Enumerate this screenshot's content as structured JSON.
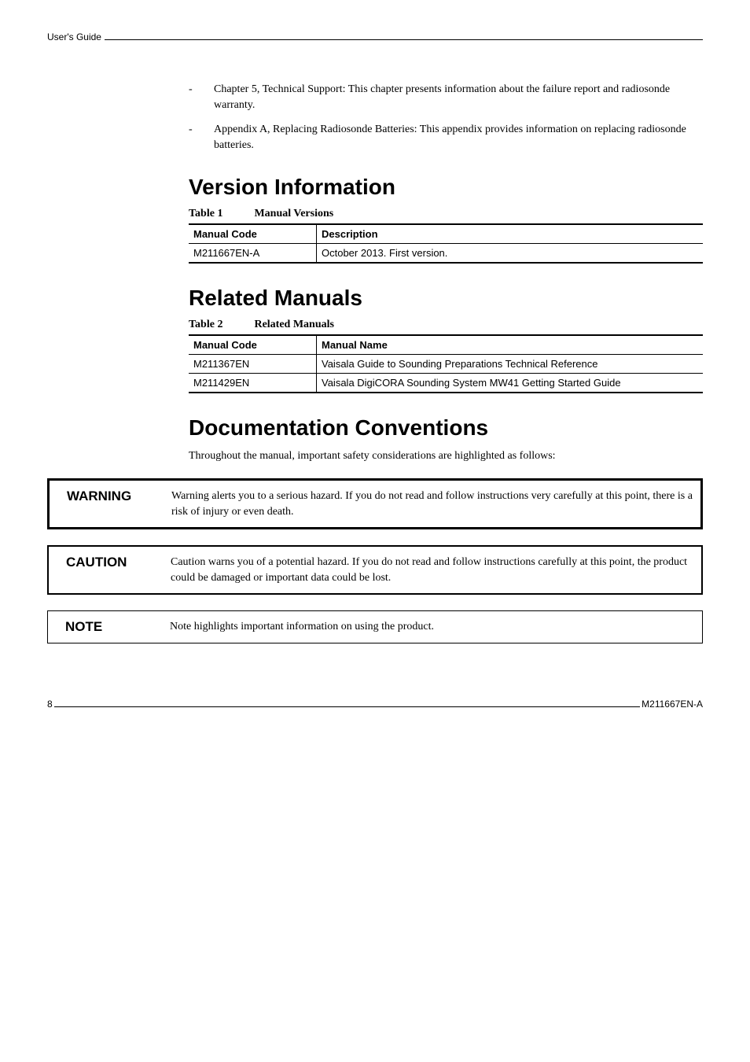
{
  "header": {
    "label": "User's Guide"
  },
  "bullets": [
    "Chapter 5, Technical Support: This chapter presents information about the failure report and radiosonde warranty.",
    "Appendix A, Replacing Radiosonde Batteries: This appendix provides information on replacing radiosonde batteries."
  ],
  "sections": {
    "version": {
      "heading": "Version Information",
      "table_num": "Table 1",
      "table_title": "Manual Versions",
      "col1": "Manual Code",
      "col2": "Description",
      "rows": [
        {
          "code": "M211667EN-A",
          "desc": "October 2013. First version."
        }
      ]
    },
    "related": {
      "heading": "Related Manuals",
      "table_num": "Table 2",
      "table_title": "Related Manuals",
      "col1": "Manual Code",
      "col2": "Manual Name",
      "rows": [
        {
          "code": "M211367EN",
          "desc": "Vaisala Guide to Sounding Preparations Technical Reference"
        },
        {
          "code": "M211429EN",
          "desc": "Vaisala DigiCORA Sounding System MW41 Getting Started Guide"
        }
      ]
    },
    "conventions": {
      "heading": "Documentation Conventions",
      "intro": "Throughout the manual, important safety considerations are highlighted as follows:"
    }
  },
  "callouts": {
    "warning": {
      "label": "WARNING",
      "body": "Warning alerts you to a serious hazard. If you do not read and follow instructions very carefully at this point, there is a risk of injury or even death."
    },
    "caution": {
      "label": "CAUTION",
      "body": "Caution warns you of a potential hazard. If you do not read and follow instructions carefully at this point, the product could be damaged or important data could be lost."
    },
    "note": {
      "label": "NOTE",
      "body": "Note highlights important information on using the product."
    }
  },
  "footer": {
    "page": "8",
    "doc": "M211667EN-A"
  }
}
